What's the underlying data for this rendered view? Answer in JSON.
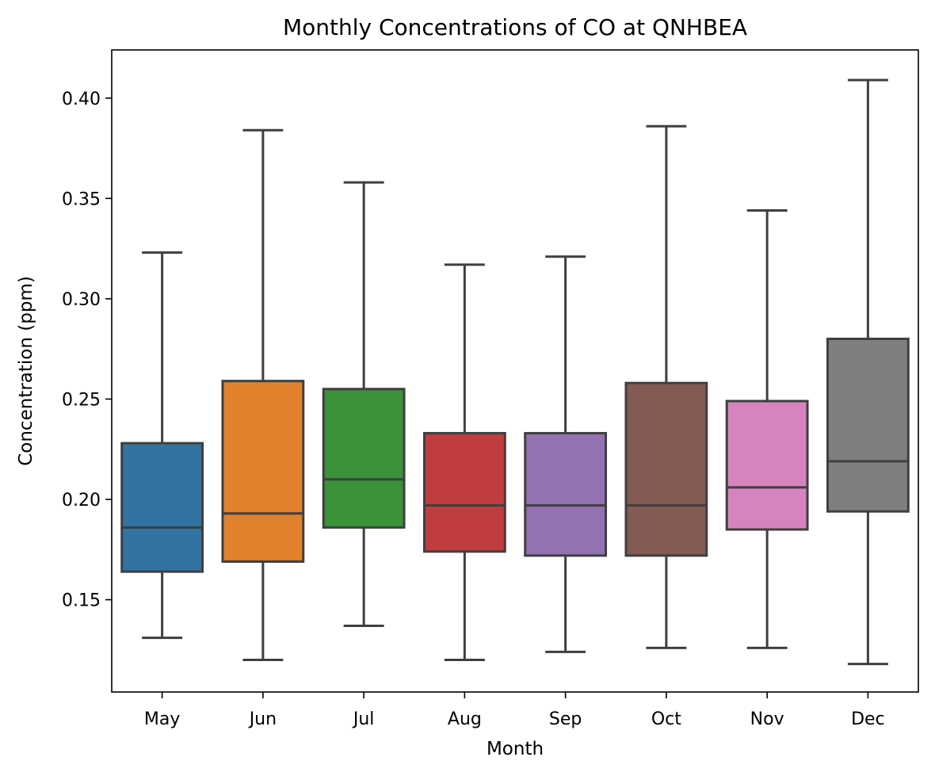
{
  "chart_data": {
    "type": "box",
    "title": "Monthly Concentrations of CO at QNHBEA",
    "xlabel": "Month",
    "ylabel": "Concentration (ppm)",
    "ylim": [
      0.104,
      0.424
    ],
    "yticks": [
      0.15,
      0.2,
      0.25,
      0.3,
      0.35,
      0.4
    ],
    "ytick_labels": [
      "0.15",
      "0.20",
      "0.25",
      "0.30",
      "0.35",
      "0.40"
    ],
    "grid": false,
    "categories": [
      "May",
      "Jun",
      "Jul",
      "Aug",
      "Sep",
      "Oct",
      "Nov",
      "Dec"
    ],
    "colors": [
      "#3274a1",
      "#e1812c",
      "#3a923a",
      "#c03d3e",
      "#9372b2",
      "#845b53",
      "#d684bd",
      "#7f7f7f"
    ],
    "edge_color": "#3f3f3f",
    "boxes": [
      {
        "whisker_low": 0.131,
        "q1": 0.164,
        "median": 0.186,
        "q3": 0.228,
        "whisker_high": 0.323
      },
      {
        "whisker_low": 0.12,
        "q1": 0.169,
        "median": 0.193,
        "q3": 0.259,
        "whisker_high": 0.384
      },
      {
        "whisker_low": 0.137,
        "q1": 0.186,
        "median": 0.21,
        "q3": 0.255,
        "whisker_high": 0.358
      },
      {
        "whisker_low": 0.12,
        "q1": 0.174,
        "median": 0.197,
        "q3": 0.233,
        "whisker_high": 0.317
      },
      {
        "whisker_low": 0.124,
        "q1": 0.172,
        "median": 0.197,
        "q3": 0.233,
        "whisker_high": 0.321
      },
      {
        "whisker_low": 0.126,
        "q1": 0.172,
        "median": 0.197,
        "q3": 0.258,
        "whisker_high": 0.386
      },
      {
        "whisker_low": 0.126,
        "q1": 0.185,
        "median": 0.206,
        "q3": 0.249,
        "whisker_high": 0.344
      },
      {
        "whisker_low": 0.118,
        "q1": 0.194,
        "median": 0.219,
        "q3": 0.28,
        "whisker_high": 0.409
      }
    ]
  }
}
